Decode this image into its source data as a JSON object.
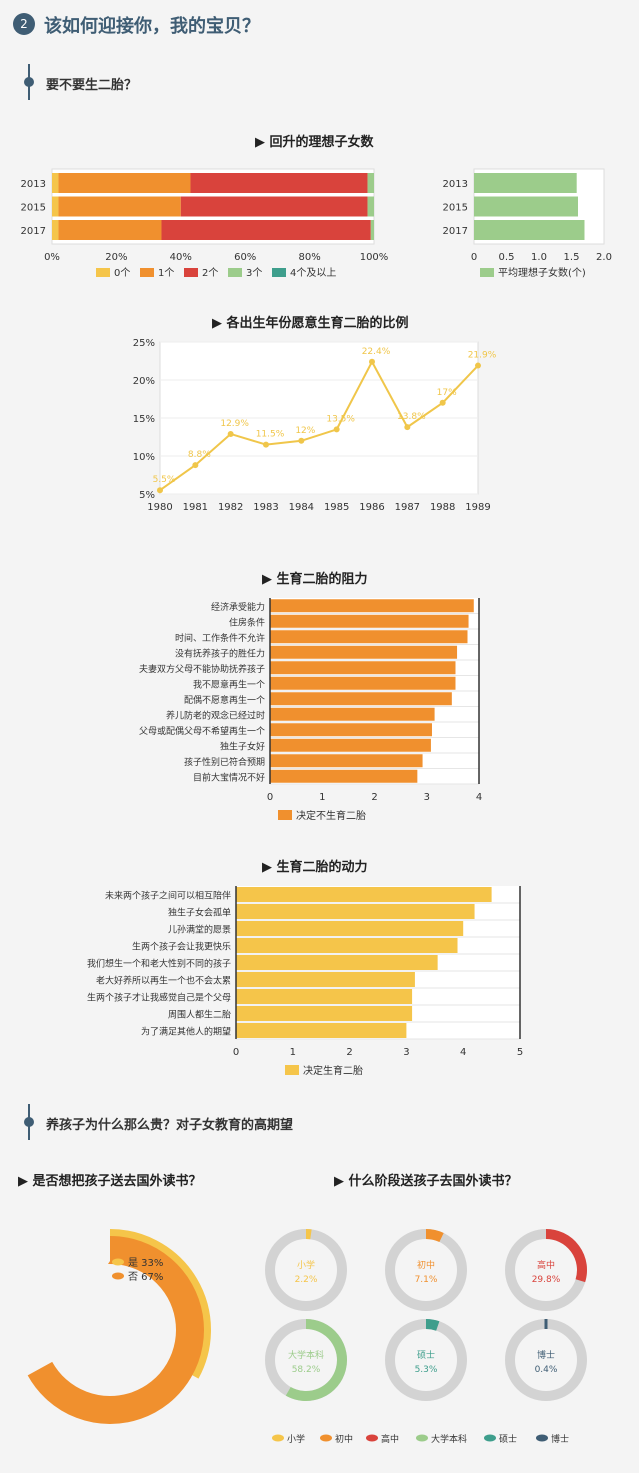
{
  "header": {
    "number": "2",
    "title": "该如何迎接你，我的宝贝？"
  },
  "sections": [
    {
      "title": "要不要生二胎？"
    },
    {
      "title": "养孩子为什么那么贵？对子女教育的高期望"
    }
  ],
  "titles": {
    "ideal": "▶ 回升的理想子女数",
    "birth_year": "▶ 各出生年份愿意生育二胎的比例",
    "resistance": "▶ 生育二胎的阻力",
    "motivation": "▶ 生育二胎的动力",
    "abroad": "▶ 是否想把孩子送去国外读书？",
    "stage": "▶ 什么阶段送孩子去国外读书？"
  },
  "colors": {
    "c0": "#f5c54a",
    "c1": "#f0902e",
    "c2": "#d9433c",
    "c3": "#9ccc8b",
    "c4": "#3e9e8c",
    "line": "#f0c64a",
    "green": "#9ccc8b",
    "ring_bg": "#d3d3d3",
    "xiaoxue": "#f5c54a",
    "chuzhong": "#f0902e",
    "gaozhong": "#d9433c",
    "benke": "#9ccc8b",
    "shuoshi": "#3e9e8c",
    "boshi": "#3f5d74"
  },
  "chart_data": [
    {
      "type": "bar",
      "stacked": true,
      "orientation": "horizontal",
      "categories": [
        "2013",
        "2015",
        "2017"
      ],
      "series": [
        {
          "name": "0个",
          "values": [
            2,
            2,
            2
          ]
        },
        {
          "name": "1个",
          "values": [
            41,
            38,
            32
          ]
        },
        {
          "name": "2个",
          "values": [
            55,
            58,
            65
          ]
        },
        {
          "name": "3个",
          "values": [
            2,
            2,
            1
          ]
        },
        {
          "name": "4个及以上",
          "values": [
            0,
            0,
            0
          ]
        }
      ],
      "x_ticks": [
        "0%",
        "20%",
        "40%",
        "60%",
        "80%",
        "100%"
      ],
      "xlim": [
        0,
        100
      ],
      "legend": "bottom"
    },
    {
      "type": "bar",
      "orientation": "horizontal",
      "categories": [
        "2013",
        "2015",
        "2017"
      ],
      "values": [
        1.58,
        1.6,
        1.7
      ],
      "x_ticks": [
        "0",
        "0.5",
        "1.0",
        "1.5",
        "2.0"
      ],
      "xlim": [
        0,
        2
      ],
      "series": [
        {
          "name": "平均理想子女数(个)"
        }
      ],
      "legend": "bottom"
    },
    {
      "type": "line",
      "x": [
        "1980",
        "1981",
        "1982",
        "1983",
        "1984",
        "1985",
        "1986",
        "1987",
        "1988",
        "1989"
      ],
      "values": [
        5.5,
        8.8,
        12.9,
        11.5,
        12,
        13.5,
        22.4,
        13.8,
        17,
        21.9
      ],
      "labels": [
        "5.5%",
        "8.8%",
        "12.9%",
        "11.5%",
        "12%",
        "13.5%",
        "22.4%",
        "13.8%",
        "17%",
        "21.9%"
      ],
      "y_ticks": [
        "5%",
        "10%",
        "15%",
        "20%",
        "25%"
      ],
      "ylim": [
        5,
        25
      ]
    },
    {
      "type": "bar",
      "orientation": "horizontal",
      "categories": [
        "经济承受能力",
        "住房条件",
        "时间、工作条件不允许",
        "没有抚养孩子的胜任力",
        "夫妻双方父母不能协助抚养孩子",
        "我不愿意再生一个",
        "配偶不愿意再生一个",
        "养儿防老的观念已经过时",
        "父母或配偶父母不希望再生一个",
        "独生子女好",
        "孩子性别已符合预期",
        "目前大宝情况不好"
      ],
      "values": [
        3.9,
        3.8,
        3.78,
        3.58,
        3.55,
        3.55,
        3.48,
        3.15,
        3.1,
        3.08,
        2.92,
        2.82
      ],
      "x_ticks": [
        "0",
        "1",
        "2",
        "3",
        "4"
      ],
      "xlim": [
        0,
        4
      ],
      "series": [
        {
          "name": "决定不生育二胎"
        }
      ],
      "legend": "bottom"
    },
    {
      "type": "bar",
      "orientation": "horizontal",
      "categories": [
        "未来两个孩子之间可以相互陪伴",
        "独生子女会孤单",
        "儿孙满堂的愿景",
        "生两个孩子会让我更快乐",
        "我们想生一个和老大性别不同的孩子",
        "老大好养所以再生一个也不会太累",
        "生两个孩子才让我感觉自己是个父母",
        "周围人都生二胎",
        "为了满足其他人的期望"
      ],
      "values": [
        4.5,
        4.2,
        4.0,
        3.9,
        3.55,
        3.15,
        3.1,
        3.1,
        3.0
      ],
      "x_ticks": [
        "0",
        "1",
        "2",
        "3",
        "4",
        "5"
      ],
      "xlim": [
        0,
        5
      ],
      "series": [
        {
          "name": "决定生育二胎"
        }
      ],
      "legend": "bottom"
    },
    {
      "type": "pie",
      "labels": [
        "是 33%",
        "否 67%"
      ],
      "slices": [
        {
          "name": "是",
          "value": 33
        },
        {
          "name": "否",
          "value": 67
        }
      ]
    },
    {
      "type": "pie",
      "rings": [
        {
          "name": "小学",
          "value": 2.2,
          "label": "2.2%"
        },
        {
          "name": "初中",
          "value": 7.1,
          "label": "7.1%"
        },
        {
          "name": "高中",
          "value": 29.8,
          "label": "29.8%"
        },
        {
          "name": "大学本科",
          "value": 58.2,
          "label": "58.2%"
        },
        {
          "name": "硕士",
          "value": 5.3,
          "label": "5.3%"
        },
        {
          "name": "博士",
          "value": 0.4,
          "label": "0.4%"
        }
      ],
      "legend": "bottom"
    }
  ]
}
